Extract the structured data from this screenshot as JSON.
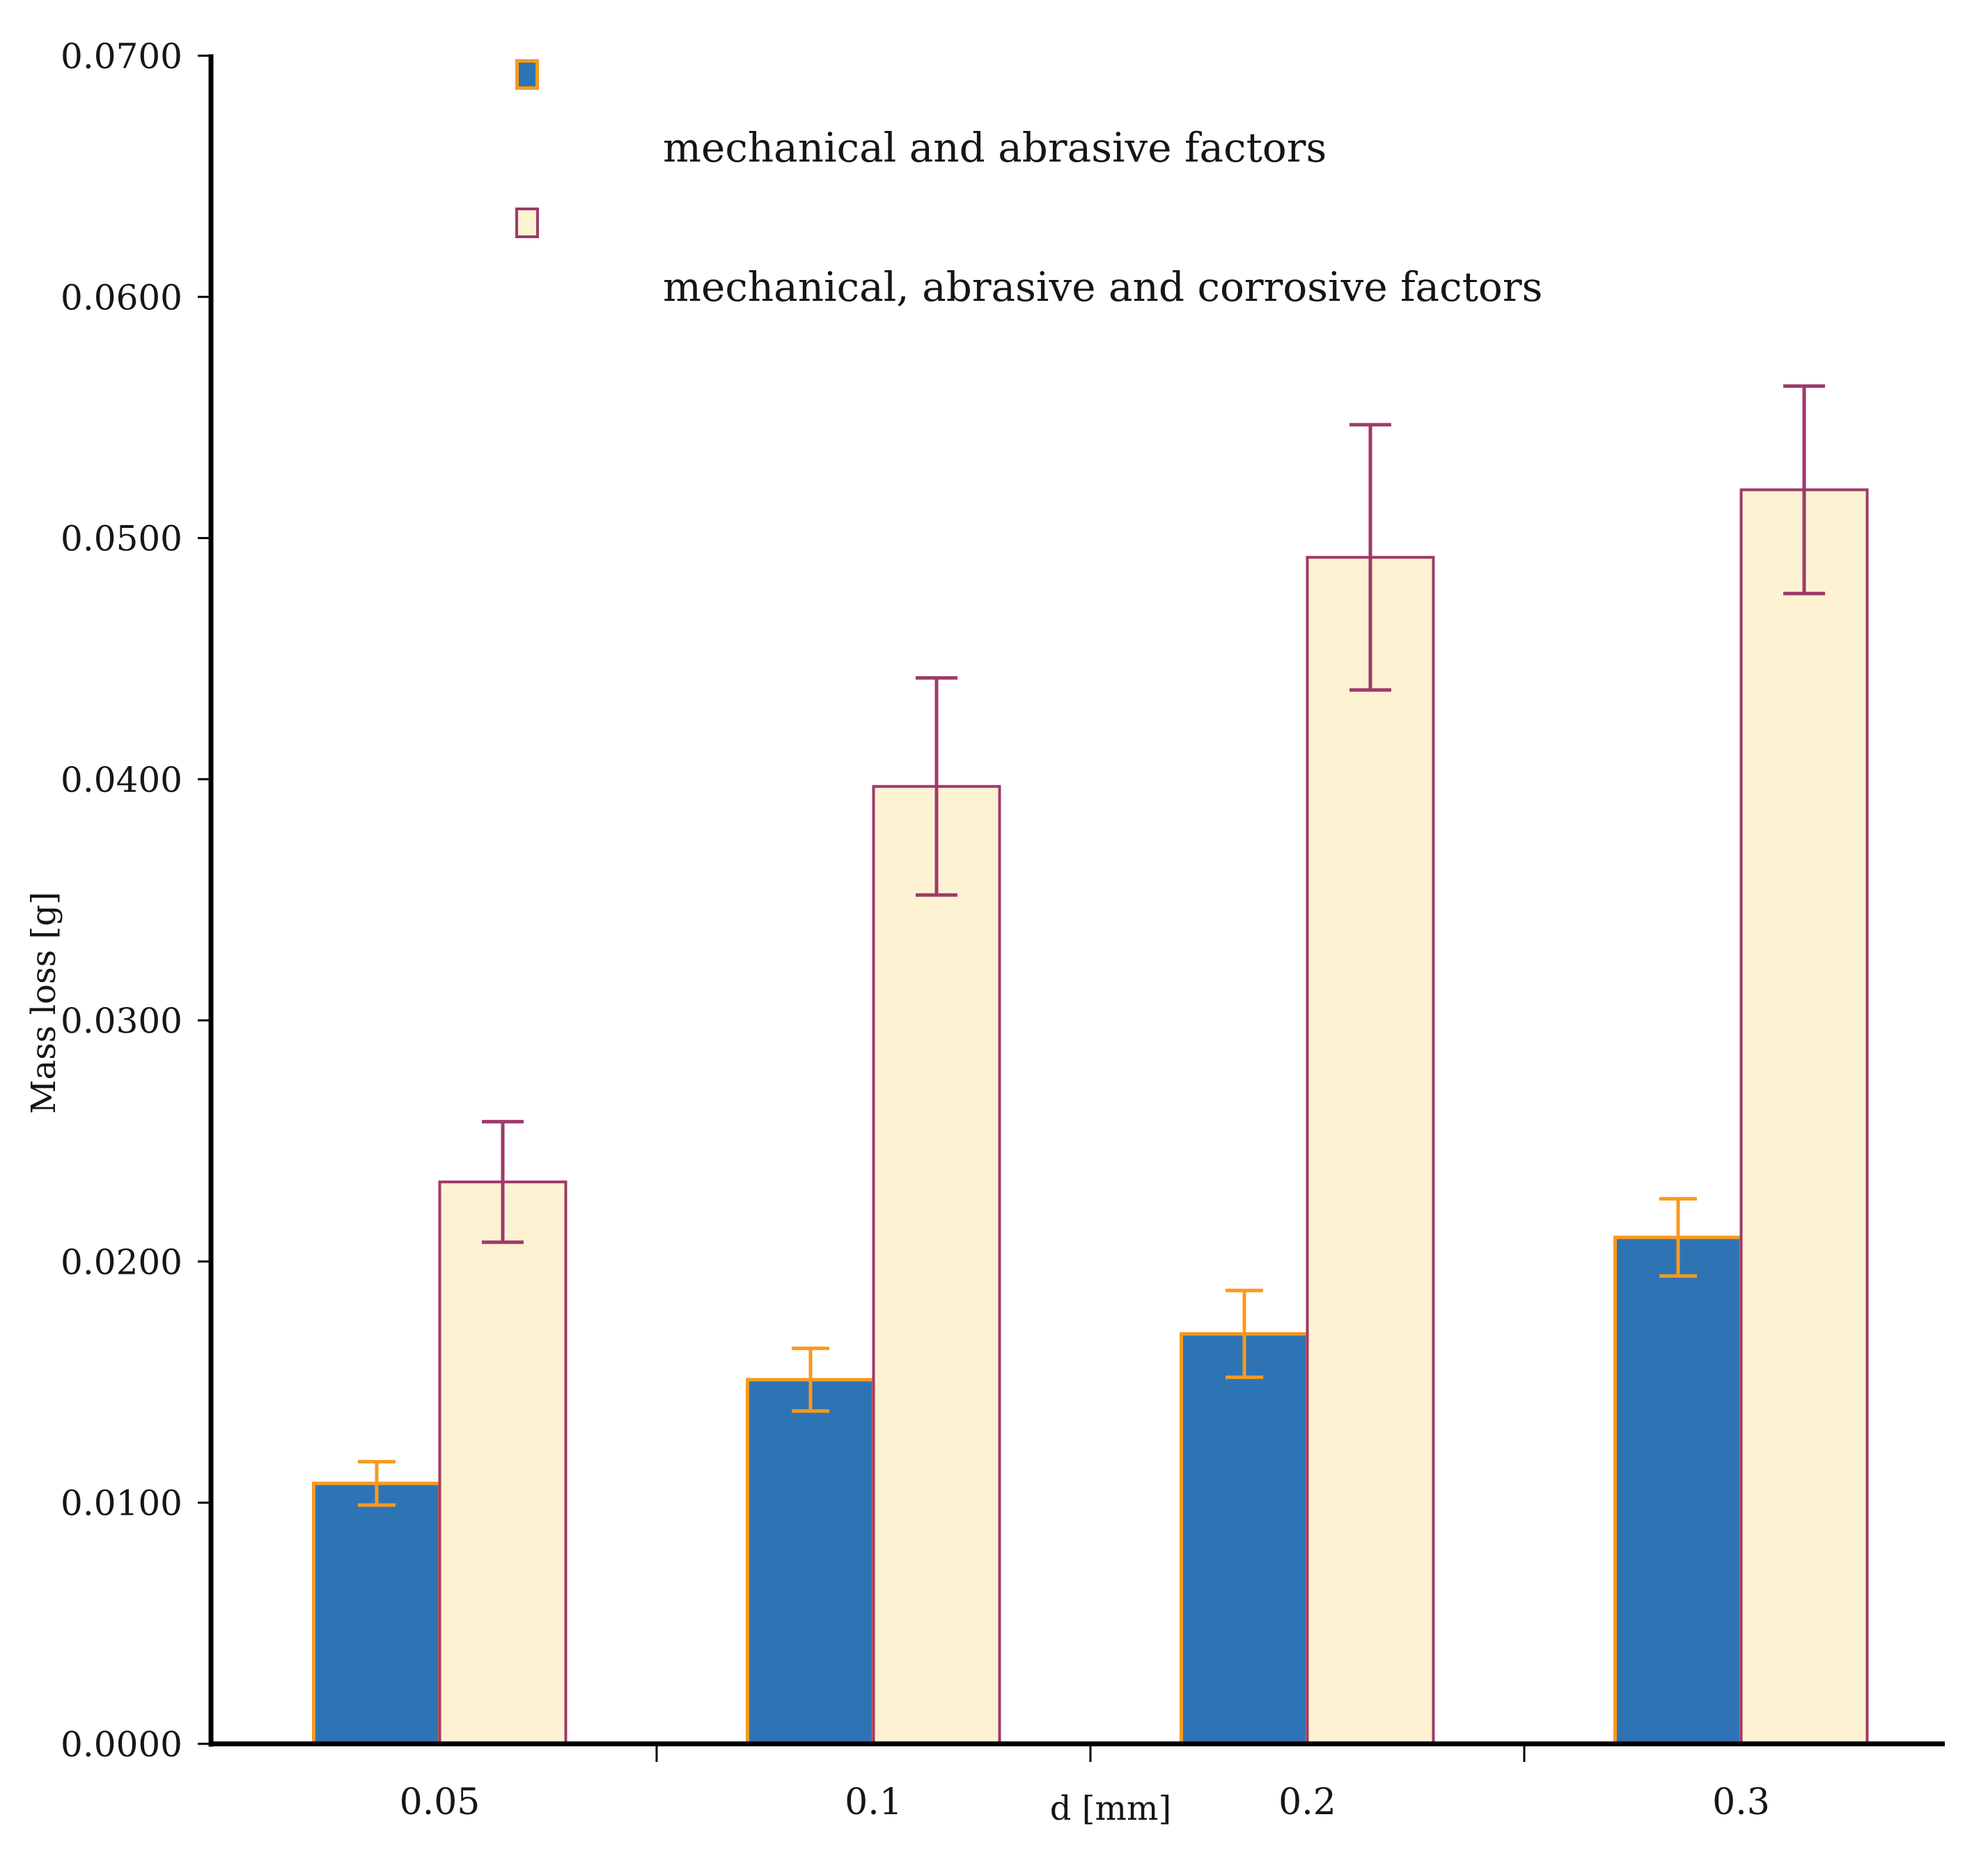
{
  "chart_data": {
    "type": "bar",
    "title": "",
    "categories": [
      "0.05",
      "0.1",
      "0.2",
      "0.3"
    ],
    "xlabel": "d [mm]",
    "ylabel": "Mass loss [g]",
    "ylim": [
      0.0,
      0.07
    ],
    "y_tick_step": 0.01,
    "y_ticks": [
      "0.0000",
      "0.0100",
      "0.0200",
      "0.0300",
      "0.0400",
      "0.0500",
      "0.0600",
      "0.0700"
    ],
    "grid": false,
    "legend_position": "top-left-inside",
    "series": [
      {
        "name": "mechanical and abrasive factors",
        "values": [
          0.0108,
          0.0151,
          0.017,
          0.021
        ],
        "errors": [
          0.0009,
          0.0013,
          0.0018,
          0.0016
        ],
        "fill": "#2E74B5",
        "stroke": "#F89A1D"
      },
      {
        "name": "mechanical, abrasive and corrosive factors",
        "values": [
          0.0233,
          0.0397,
          0.0492,
          0.052
        ],
        "errors": [
          0.0025,
          0.0045,
          0.0055,
          0.0043
        ],
        "fill": "#FDF2D2",
        "stroke": "#9E3A6A"
      }
    ],
    "axis_color": "#000000",
    "tick_label_color": "#161616"
  }
}
